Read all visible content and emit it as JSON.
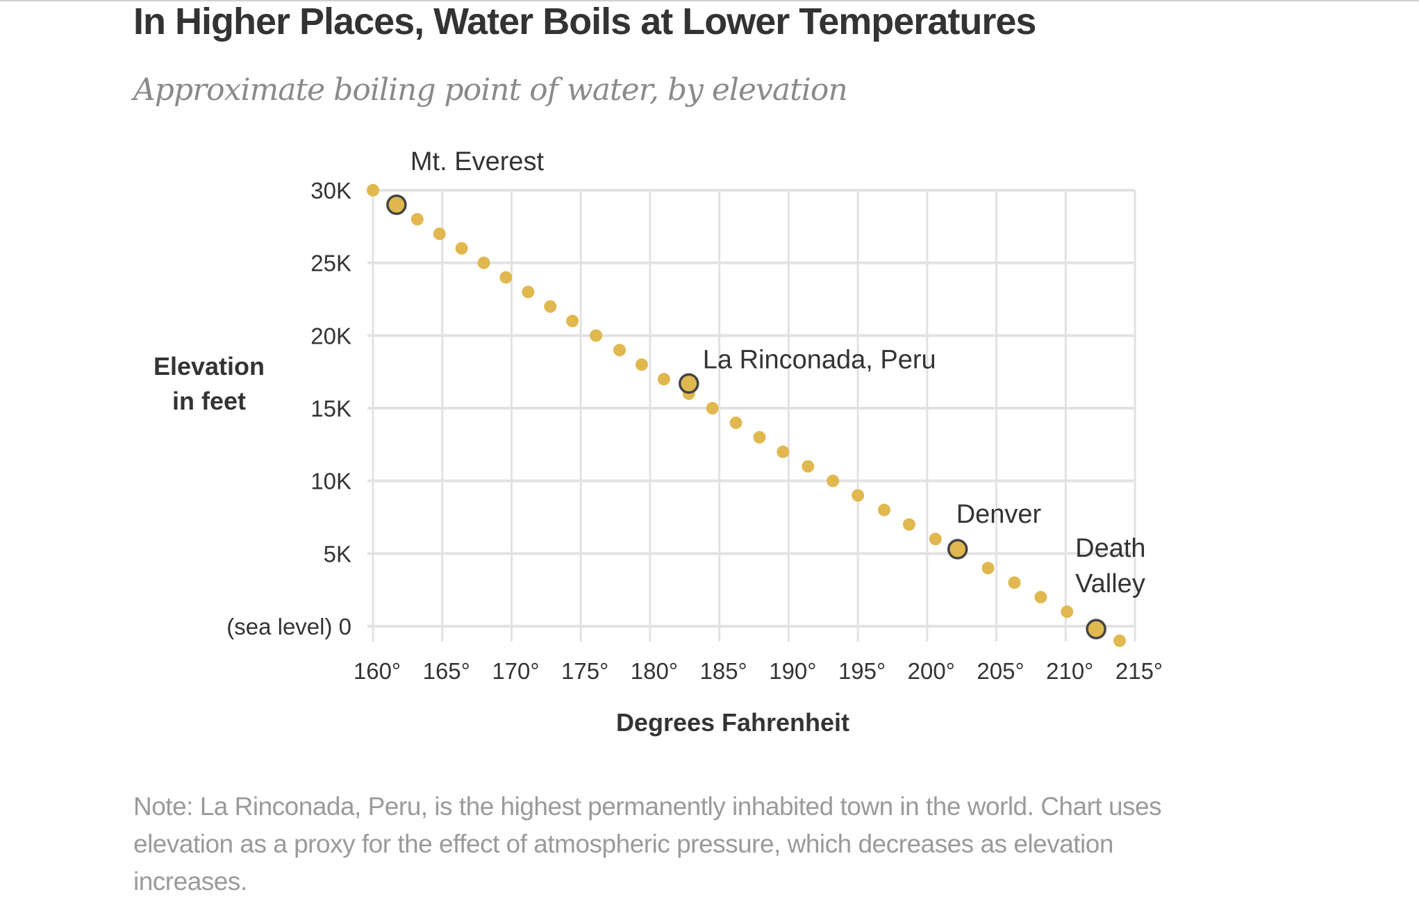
{
  "header": {
    "title": "In Higher Places, Water Boils at Lower Temperatures",
    "subtitle": "Approximate boiling point of water, by elevation"
  },
  "footer": {
    "note": "Note: La Rinconada, Peru, is the highest permanently inhabited town in the world. Chart uses elevation as a proxy for the effect of atmospheric pressure, which decreases as elevation increases."
  },
  "colors": {
    "dot": "#e0b84f",
    "highlight_stroke": "#444444",
    "grid": "#e2e2e2",
    "text": "#333333",
    "note": "#9a9a9a"
  },
  "chart_data": {
    "type": "scatter",
    "title": "In Higher Places, Water Boils at Lower Temperatures",
    "subtitle": "Approximate boiling point of water, by elevation",
    "xlabel": "Degrees Fahrenheit",
    "ylabel_lines": [
      "Elevation",
      "in feet"
    ],
    "xlim": [
      160,
      215
    ],
    "ylim": [
      0,
      30000
    ],
    "grid": true,
    "x_ticks": [
      160,
      165,
      170,
      175,
      180,
      185,
      190,
      195,
      200,
      205,
      210,
      215
    ],
    "x_tick_labels": [
      "160°",
      "165°",
      "170°",
      "175°",
      "180°",
      "185°",
      "190°",
      "195°",
      "200°",
      "205°",
      "210°",
      "215°"
    ],
    "y_ticks": [
      0,
      5000,
      10000,
      15000,
      20000,
      25000,
      30000
    ],
    "y_tick_labels": [
      "(sea level) 0",
      "5K",
      "10K",
      "15K",
      "20K",
      "25K",
      "30K"
    ],
    "series": [
      {
        "name": "Boiling point by elevation",
        "points": [
          {
            "x": 160.0,
            "y": 30000
          },
          {
            "x": 163.2,
            "y": 28000
          },
          {
            "x": 164.8,
            "y": 27000
          },
          {
            "x": 166.4,
            "y": 26000
          },
          {
            "x": 168.0,
            "y": 25000
          },
          {
            "x": 169.6,
            "y": 24000
          },
          {
            "x": 171.2,
            "y": 23000
          },
          {
            "x": 172.8,
            "y": 22000
          },
          {
            "x": 174.4,
            "y": 21000
          },
          {
            "x": 176.1,
            "y": 20000
          },
          {
            "x": 177.8,
            "y": 19000
          },
          {
            "x": 179.4,
            "y": 18000
          },
          {
            "x": 181.0,
            "y": 17000
          },
          {
            "x": 182.8,
            "y": 16000
          },
          {
            "x": 184.5,
            "y": 15000
          },
          {
            "x": 186.2,
            "y": 14000
          },
          {
            "x": 187.9,
            "y": 13000
          },
          {
            "x": 189.6,
            "y": 12000
          },
          {
            "x": 191.4,
            "y": 11000
          },
          {
            "x": 193.2,
            "y": 10000
          },
          {
            "x": 195.0,
            "y": 9000
          },
          {
            "x": 196.9,
            "y": 8000
          },
          {
            "x": 198.7,
            "y": 7000
          },
          {
            "x": 200.6,
            "y": 6000
          },
          {
            "x": 204.4,
            "y": 4000
          },
          {
            "x": 206.3,
            "y": 3000
          },
          {
            "x": 208.2,
            "y": 2000
          },
          {
            "x": 210.1,
            "y": 1000
          },
          {
            "x": 213.9,
            "y": -1000
          }
        ]
      }
    ],
    "highlights": [
      {
        "label": "Mt. Everest",
        "x": 161.7,
        "y": 29000
      },
      {
        "label": "La Rinconada, Peru",
        "x": 182.8,
        "y": 16700
      },
      {
        "label": "Denver",
        "x": 202.2,
        "y": 5300
      },
      {
        "label": "Death Valley",
        "x": 212.2,
        "y": -200
      }
    ]
  }
}
